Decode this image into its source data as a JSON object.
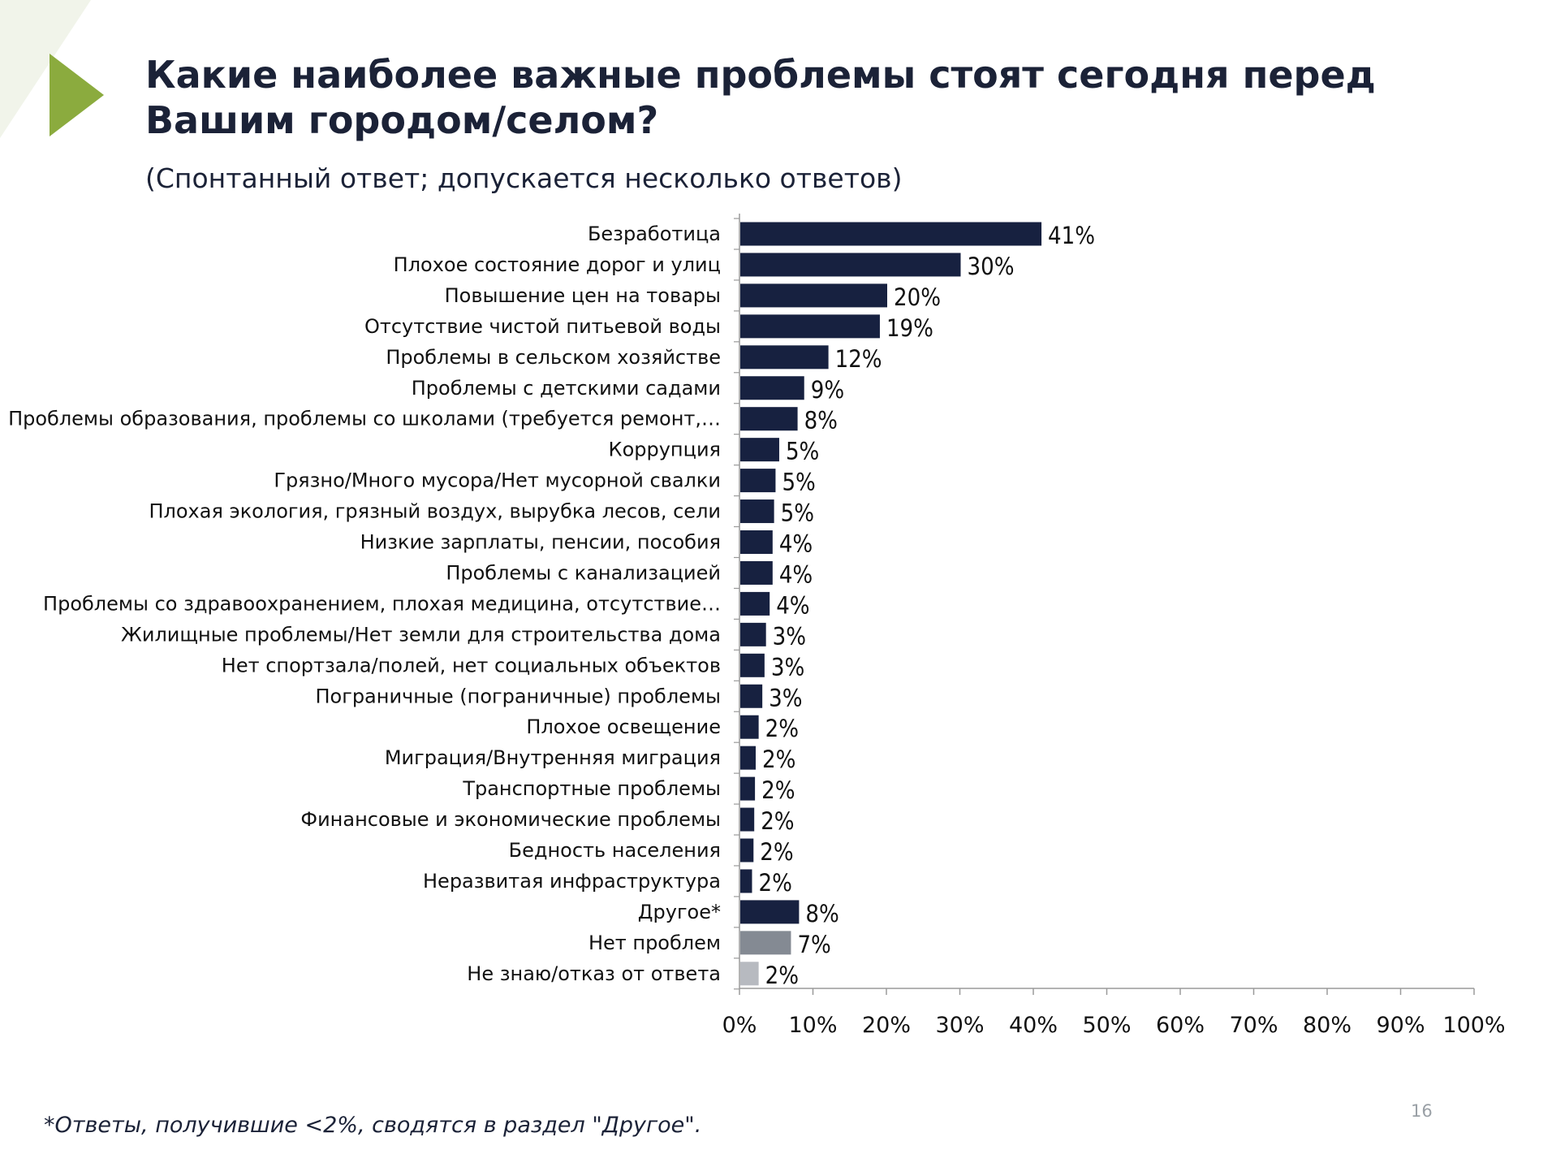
{
  "title": "Какие наиболее важные проблемы стоят сегодня перед Вашим городом/селом?",
  "subtitle": "(Спонтанный ответ; допускается несколько ответов)",
  "footnote": "*Ответы, получившие <2%, сводятся в раздел \"Другое\".",
  "page_number": "16",
  "colors": {
    "bar": "#172140",
    "no_problems": "#848a93",
    "dont_know": "#b7bac0",
    "accent": "#8bab3e",
    "text": "#1b2237"
  },
  "chart_data": {
    "type": "bar",
    "orientation": "horizontal",
    "title": "Какие наиболее важные проблемы стоят сегодня перед Вашим городом/селом?",
    "xlabel": "",
    "ylabel": "",
    "xlim": [
      0,
      100
    ],
    "ticks": [
      "0%",
      "10%",
      "20%",
      "30%",
      "40%",
      "50%",
      "60%",
      "70%",
      "80%",
      "90%",
      "100%"
    ],
    "categories": [
      "Безработица",
      "Плохое состояние дорог и улиц",
      "Повышение цен на товары",
      "Отсутствие чистой питьевой воды",
      "Проблемы в сельском хозяйстве",
      "Проблемы с детскими садами",
      "Проблемы образования, проблемы со школами (требуется ремонт,…",
      "Коррупция",
      "Грязно/Много мусора/Нет мусорной свалки",
      "Плохая экология, грязный воздух, вырубка лесов, сели",
      "Низкие зарплаты, пенсии, пособия",
      "Проблемы с канализацией",
      "Проблемы со здравоохранением, плохая медицина, отсутствие…",
      "Жилищные проблемы/Нет земли для строительства дома",
      "Нет спортзала/полей, нет социальных объектов",
      "Пограничные (пограничные) проблемы",
      "Плохое освещение",
      "Миграция/Внутренняя миграция",
      "Транспортные проблемы",
      "Финансовые и экономические проблемы",
      "Бедность населения",
      "Неразвитая инфраструктура",
      "Другое*",
      "Нет проблем",
      "Не знаю/отказ от ответа"
    ],
    "values": [
      41,
      30,
      20,
      19,
      12,
      8.7,
      7.8,
      5.3,
      4.8,
      4.6,
      4.4,
      4.4,
      4.0,
      3.5,
      3.3,
      3.0,
      2.5,
      2.1,
      2.0,
      1.9,
      1.8,
      1.6,
      8.0,
      6.9,
      2.5
    ],
    "value_labels": [
      "41%",
      "30%",
      "20%",
      "19%",
      "12%",
      "9%",
      "8%",
      "5%",
      "5%",
      "5%",
      "4%",
      "4%",
      "4%",
      "3%",
      "3%",
      "3%",
      "2%",
      "2%",
      "2%",
      "2%",
      "2%",
      "2%",
      "8%",
      "7%",
      "2%"
    ],
    "bar_color_keys": [
      "bar",
      "bar",
      "bar",
      "bar",
      "bar",
      "bar",
      "bar",
      "bar",
      "bar",
      "bar",
      "bar",
      "bar",
      "bar",
      "bar",
      "bar",
      "bar",
      "bar",
      "bar",
      "bar",
      "bar",
      "bar",
      "bar",
      "bar",
      "no_problems",
      "dont_know"
    ]
  }
}
